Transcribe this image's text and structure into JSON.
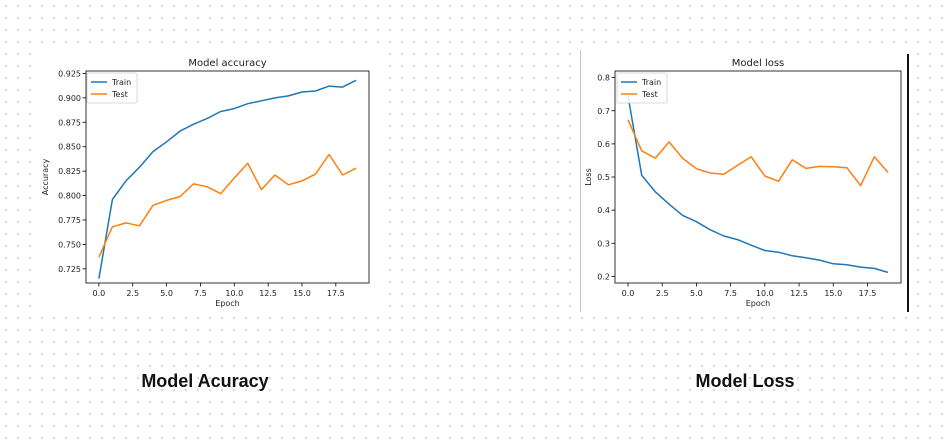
{
  "colors": {
    "train": "#1f77b4",
    "test": "#ff7f0e"
  },
  "captions": {
    "accuracy": "Model Acuracy",
    "loss": "Model Loss"
  },
  "chart_data": [
    {
      "type": "line",
      "title": "Model accuracy",
      "xlabel": "Epoch",
      "ylabel": "Accuracy",
      "xlim": [
        -0.95,
        19.95
      ],
      "ylim": [
        0.7105,
        0.9275
      ],
      "xticks": [
        0.0,
        2.5,
        5.0,
        7.5,
        10.0,
        12.5,
        15.0,
        17.5
      ],
      "xtick_labels": [
        "0.0",
        "2.5",
        "5.0",
        "7.5",
        "10.0",
        "12.5",
        "15.0",
        "17.5"
      ],
      "yticks": [
        0.725,
        0.75,
        0.775,
        0.8,
        0.825,
        0.85,
        0.875,
        0.9,
        0.925
      ],
      "ytick_labels": [
        "0.725",
        "0.750",
        "0.775",
        "0.800",
        "0.825",
        "0.850",
        "0.875",
        "0.900",
        "0.925"
      ],
      "legend": "top-left",
      "grid": false,
      "x": [
        0,
        1,
        2,
        3,
        4,
        5,
        6,
        7,
        8,
        9,
        10,
        11,
        12,
        13,
        14,
        15,
        16,
        17,
        18,
        19
      ],
      "series": [
        {
          "name": "Train",
          "values": [
            0.715,
            0.796,
            0.815,
            0.829,
            0.845,
            0.855,
            0.866,
            0.873,
            0.879,
            0.886,
            0.889,
            0.894,
            0.897,
            0.9,
            0.902,
            0.906,
            0.907,
            0.912,
            0.911,
            0.918
          ]
        },
        {
          "name": "Test",
          "values": [
            0.737,
            0.768,
            0.772,
            0.769,
            0.79,
            0.795,
            0.799,
            0.812,
            0.809,
            0.802,
            0.818,
            0.833,
            0.806,
            0.821,
            0.811,
            0.815,
            0.822,
            0.842,
            0.821,
            0.828
          ]
        }
      ]
    },
    {
      "type": "line",
      "title": "Model loss",
      "xlabel": "Epoch",
      "ylabel": "Loss",
      "xlim": [
        -0.95,
        19.95
      ],
      "ylim": [
        0.18,
        0.82
      ],
      "xticks": [
        0.0,
        2.5,
        5.0,
        7.5,
        10.0,
        12.5,
        15.0,
        17.5
      ],
      "xtick_labels": [
        "0.0",
        "2.5",
        "5.0",
        "7.5",
        "10.0",
        "12.5",
        "15.0",
        "17.5"
      ],
      "yticks": [
        0.2,
        0.3,
        0.4,
        0.5,
        0.6,
        0.7,
        0.8
      ],
      "ytick_labels": [
        "0.2",
        "0.3",
        "0.4",
        "0.5",
        "0.6",
        "0.7",
        "0.8"
      ],
      "legend": "top-left",
      "grid": false,
      "x": [
        0,
        1,
        2,
        3,
        4,
        5,
        6,
        7,
        8,
        9,
        10,
        11,
        12,
        13,
        14,
        15,
        16,
        17,
        18,
        19
      ],
      "series": [
        {
          "name": "Train",
          "values": [
            0.745,
            0.505,
            0.455,
            0.418,
            0.384,
            0.365,
            0.341,
            0.322,
            0.311,
            0.294,
            0.278,
            0.273,
            0.262,
            0.256,
            0.249,
            0.238,
            0.235,
            0.228,
            0.224,
            0.212
          ]
        },
        {
          "name": "Test",
          "values": [
            0.673,
            0.579,
            0.557,
            0.606,
            0.556,
            0.525,
            0.512,
            0.508,
            0.535,
            0.561,
            0.503,
            0.487,
            0.552,
            0.526,
            0.532,
            0.531,
            0.528,
            0.474,
            0.561,
            0.514
          ]
        }
      ]
    }
  ]
}
